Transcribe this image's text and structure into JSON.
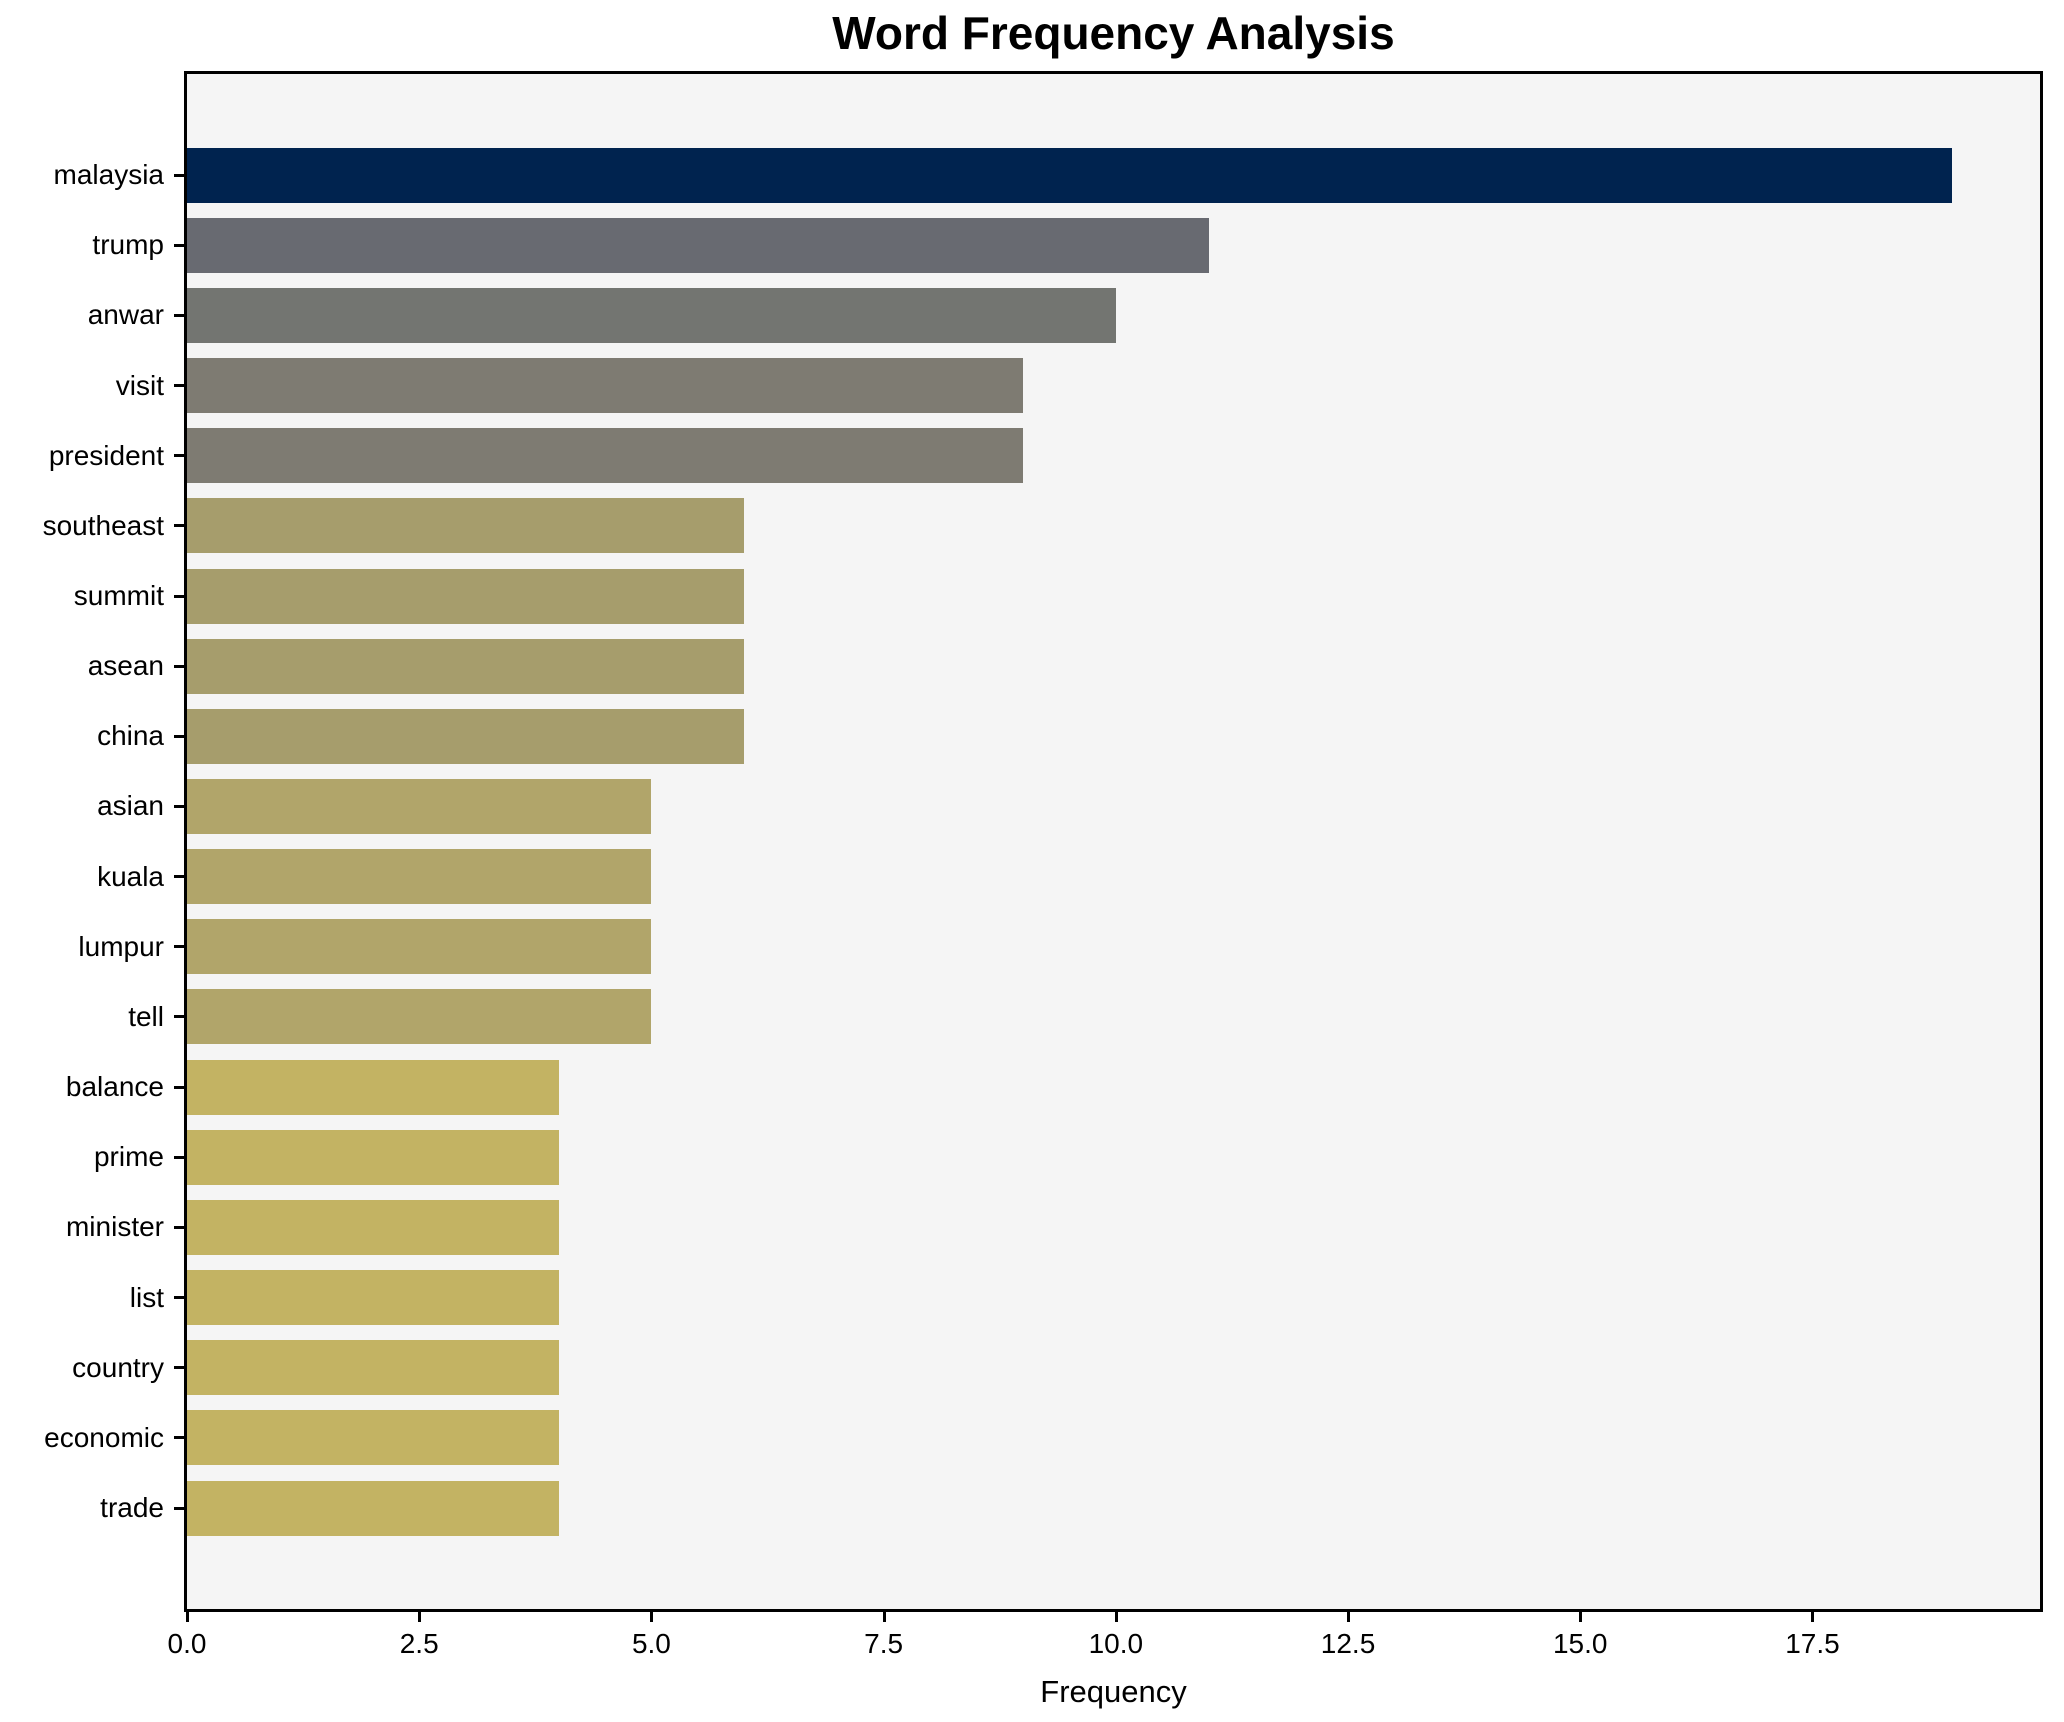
{
  "chart_data": {
    "type": "bar",
    "orientation": "horizontal",
    "title": "Word Frequency Analysis",
    "xlabel": "Frequency",
    "ylabel": "",
    "categories": [
      "malaysia",
      "trump",
      "anwar",
      "visit",
      "president",
      "southeast",
      "summit",
      "asean",
      "china",
      "asian",
      "kuala",
      "lumpur",
      "tell",
      "balance",
      "prime",
      "minister",
      "list",
      "country",
      "economic",
      "trade"
    ],
    "values": [
      19,
      11,
      10,
      9,
      9,
      6,
      6,
      6,
      6,
      5,
      5,
      5,
      5,
      4,
      4,
      4,
      4,
      4,
      4,
      4
    ],
    "bar_colors": [
      "#00234f",
      "#686a71",
      "#737571",
      "#7e7b72",
      "#7e7b72",
      "#a69d6c",
      "#a69d6c",
      "#a69d6c",
      "#a69d6c",
      "#b1a56a",
      "#b1a56a",
      "#b1a56a",
      "#b1a56a",
      "#c3b363",
      "#c3b363",
      "#c3b363",
      "#c3b363",
      "#c3b363",
      "#c3b363",
      "#c3b363"
    ],
    "xlim": [
      0,
      19.95
    ],
    "x_ticks": [
      0,
      2.5,
      5,
      7.5,
      10,
      12.5,
      15,
      17.5
    ],
    "x_tick_labels": [
      "0.0",
      "2.5",
      "5.0",
      "7.5",
      "10.0",
      "12.5",
      "15.0",
      "17.5"
    ],
    "grid": false,
    "legend": null,
    "plot_background": "#f5f5f5",
    "figure_background": "#ffffff",
    "spine_color": "#000000",
    "text_color": "#000000"
  }
}
